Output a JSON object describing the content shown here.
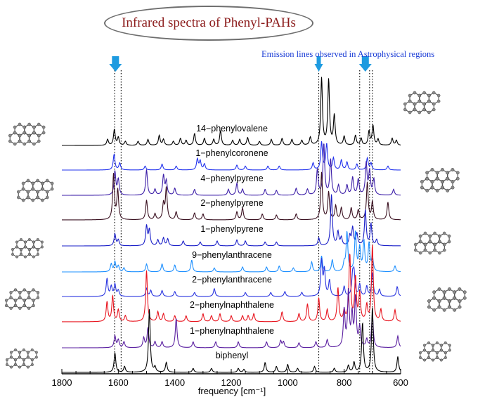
{
  "title": "Infrared spectra of Phenyl-PAHs",
  "annotation": "Emission lines observed in Astrophysical regions",
  "colors": {
    "title_text": "#8b1a1a",
    "annotation_text": "#1a3cd6",
    "arrow": "#1e9be0",
    "molecule_atom": "#8a8a8a"
  },
  "chart_data": {
    "type": "line",
    "xlabel": "frequency [cm⁻¹]",
    "xlim": [
      1800,
      600
    ],
    "x_inverted": true,
    "x_ticks": [
      1800,
      1600,
      1400,
      1200,
      1000,
      800,
      600
    ],
    "y_axis": "none",
    "emission_lines": [
      1613,
      1590,
      890,
      745,
      710,
      700
    ],
    "arrows_at": [
      1610,
      890,
      725
    ],
    "series": [
      {
        "name": "14−phenylovalene",
        "color": "#000000",
        "peaks": [
          [
            1638,
            0.3
          ],
          [
            1614,
            0.8
          ],
          [
            1600,
            0.4
          ],
          [
            1575,
            0.2
          ],
          [
            1530,
            0.2
          ],
          [
            1495,
            0.3
          ],
          [
            1455,
            0.5
          ],
          [
            1440,
            0.3
          ],
          [
            1405,
            0.2
          ],
          [
            1380,
            0.35
          ],
          [
            1360,
            0.25
          ],
          [
            1330,
            0.6
          ],
          [
            1295,
            0.35
          ],
          [
            1262,
            0.3
          ],
          [
            1238,
            0.75
          ],
          [
            1195,
            0.25
          ],
          [
            1170,
            0.3
          ],
          [
            1142,
            0.4
          ],
          [
            1100,
            0.2
          ],
          [
            1058,
            0.3
          ],
          [
            1020,
            0.35
          ],
          [
            985,
            0.3
          ],
          [
            950,
            0.25
          ],
          [
            920,
            0.4
          ],
          [
            880,
            3.4
          ],
          [
            855,
            3.3
          ],
          [
            835,
            1.5
          ],
          [
            800,
            0.45
          ],
          [
            760,
            0.5
          ],
          [
            740,
            0.35
          ],
          [
            712,
            0.7
          ],
          [
            698,
            1.0
          ],
          [
            680,
            0.3
          ],
          [
            630,
            0.35
          ],
          [
            615,
            0.25
          ]
        ]
      },
      {
        "name": "1−phenylcoronene",
        "color": "#2233ee",
        "peaks": [
          [
            1615,
            0.8
          ],
          [
            1595,
            0.35
          ],
          [
            1505,
            0.2
          ],
          [
            1445,
            0.3
          ],
          [
            1395,
            0.2
          ],
          [
            1320,
            0.55
          ],
          [
            1310,
            0.45
          ],
          [
            1295,
            0.3
          ],
          [
            1180,
            0.25
          ],
          [
            1150,
            0.2
          ],
          [
            1070,
            0.2
          ],
          [
            1030,
            0.2
          ],
          [
            910,
            0.35
          ],
          [
            880,
            1.4
          ],
          [
            862,
            1.3
          ],
          [
            838,
            0.6
          ],
          [
            810,
            0.5
          ],
          [
            790,
            0.4
          ],
          [
            755,
            0.3
          ],
          [
            718,
            0.6
          ],
          [
            705,
            0.35
          ],
          [
            645,
            0.2
          ]
        ]
      },
      {
        "name": "4−phenylpyrene",
        "color": "#3d1fa8",
        "peaks": [
          [
            1612,
            1.2
          ],
          [
            1600,
            0.8
          ],
          [
            1500,
            1.3
          ],
          [
            1470,
            0.3
          ],
          [
            1440,
            1.0
          ],
          [
            1430,
            0.7
          ],
          [
            1400,
            0.35
          ],
          [
            1330,
            0.3
          ],
          [
            1210,
            0.3
          ],
          [
            1180,
            0.6
          ],
          [
            1160,
            0.3
          ],
          [
            1080,
            0.3
          ],
          [
            1040,
            0.25
          ],
          [
            970,
            0.35
          ],
          [
            930,
            0.3
          ],
          [
            895,
            1.3
          ],
          [
            872,
            2.6
          ],
          [
            848,
            1.8
          ],
          [
            820,
            0.5
          ],
          [
            790,
            0.5
          ],
          [
            770,
            0.9
          ],
          [
            750,
            0.8
          ],
          [
            722,
            1.6
          ],
          [
            710,
            1.2
          ],
          [
            695,
            0.8
          ],
          [
            625,
            0.3
          ]
        ]
      },
      {
        "name": "2−phenylpyrene",
        "color": "#3a1020",
        "peaks": [
          [
            1617,
            2.3
          ],
          [
            1602,
            1.5
          ],
          [
            1500,
            1.0
          ],
          [
            1470,
            0.3
          ],
          [
            1440,
            0.8
          ],
          [
            1430,
            1.6
          ],
          [
            1395,
            0.4
          ],
          [
            1330,
            0.35
          ],
          [
            1300,
            0.3
          ],
          [
            1180,
            0.4
          ],
          [
            1160,
            0.6
          ],
          [
            1090,
            0.3
          ],
          [
            1040,
            0.25
          ],
          [
            970,
            0.3
          ],
          [
            880,
            2.4
          ],
          [
            855,
            1.4
          ],
          [
            830,
            0.7
          ],
          [
            810,
            0.6
          ],
          [
            775,
            0.6
          ],
          [
            750,
            0.5
          ],
          [
            718,
            1.9
          ],
          [
            700,
            0.9
          ],
          [
            645,
            0.9
          ]
        ]
      },
      {
        "name": "1−phenylpyrene",
        "color": "#1a1fc8",
        "peaks": [
          [
            1612,
            0.6
          ],
          [
            1600,
            0.3
          ],
          [
            1500,
            1.0
          ],
          [
            1490,
            0.8
          ],
          [
            1460,
            0.3
          ],
          [
            1440,
            0.4
          ],
          [
            1425,
            0.35
          ],
          [
            1370,
            0.25
          ],
          [
            1310,
            0.2
          ],
          [
            1250,
            0.25
          ],
          [
            1180,
            0.3
          ],
          [
            1150,
            0.25
          ],
          [
            1080,
            0.2
          ],
          [
            1040,
            0.2
          ],
          [
            890,
            0.4
          ],
          [
            845,
            2.6
          ],
          [
            822,
            0.7
          ],
          [
            810,
            0.4
          ],
          [
            780,
            0.5
          ],
          [
            770,
            0.9
          ],
          [
            755,
            0.6
          ],
          [
            725,
            1.8
          ],
          [
            705,
            1.1
          ],
          [
            685,
            0.3
          ]
        ]
      },
      {
        "name": "9−phenylanthracene",
        "color": "#1e90ff",
        "peaks": [
          [
            1625,
            0.4
          ],
          [
            1612,
            0.5
          ],
          [
            1600,
            0.3
          ],
          [
            1580,
            0.2
          ],
          [
            1500,
            0.4
          ],
          [
            1445,
            0.4
          ],
          [
            1400,
            0.35
          ],
          [
            1340,
            0.6
          ],
          [
            1260,
            0.2
          ],
          [
            1160,
            0.25
          ],
          [
            1075,
            0.25
          ],
          [
            1030,
            0.3
          ],
          [
            980,
            0.2
          ],
          [
            915,
            0.5
          ],
          [
            880,
            0.8
          ],
          [
            842,
            0.6
          ],
          [
            800,
            0.4
          ],
          [
            790,
            2.0
          ],
          [
            760,
            2.0
          ],
          [
            745,
            1.2
          ],
          [
            730,
            1.5
          ],
          [
            712,
            1.4
          ],
          [
            700,
            0.7
          ],
          [
            620,
            0.3
          ]
        ]
      },
      {
        "name": "2−phenylanthracene",
        "color": "#2a35e0",
        "peaks": [
          [
            1640,
            0.9
          ],
          [
            1625,
            0.5
          ],
          [
            1612,
            0.6
          ],
          [
            1600,
            0.3
          ],
          [
            1500,
            0.4
          ],
          [
            1485,
            0.3
          ],
          [
            1445,
            0.3
          ],
          [
            1400,
            0.25
          ],
          [
            1330,
            0.2
          ],
          [
            1260,
            0.4
          ],
          [
            1150,
            0.2
          ],
          [
            1060,
            0.2
          ],
          [
            1010,
            0.25
          ],
          [
            950,
            0.2
          ],
          [
            880,
            1.8
          ],
          [
            870,
            1.3
          ],
          [
            852,
            0.8
          ],
          [
            800,
            0.5
          ],
          [
            770,
            1.0
          ],
          [
            765,
            1.1
          ],
          [
            745,
            0.6
          ],
          [
            720,
            0.5
          ],
          [
            700,
            1.2
          ],
          [
            675,
            0.35
          ],
          [
            612,
            0.5
          ]
        ]
      },
      {
        "name": "2−phenylnaphthalene",
        "color": "#e8141e",
        "peaks": [
          [
            1640,
            1.0
          ],
          [
            1620,
            1.3
          ],
          [
            1600,
            0.6
          ],
          [
            1575,
            0.3
          ],
          [
            1500,
            2.6
          ],
          [
            1460,
            0.5
          ],
          [
            1440,
            0.4
          ],
          [
            1400,
            0.3
          ],
          [
            1360,
            0.3
          ],
          [
            1300,
            0.4
          ],
          [
            1270,
            0.3
          ],
          [
            1240,
            0.4
          ],
          [
            1200,
            0.3
          ],
          [
            1160,
            0.3
          ],
          [
            1140,
            0.3
          ],
          [
            1120,
            0.4
          ],
          [
            1020,
            0.5
          ],
          [
            960,
            0.4
          ],
          [
            930,
            0.9
          ],
          [
            890,
            1.2
          ],
          [
            860,
            0.6
          ],
          [
            822,
            1.7
          ],
          [
            800,
            0.5
          ],
          [
            780,
            3.4
          ],
          [
            760,
            2.2
          ],
          [
            745,
            1.4
          ],
          [
            720,
            0.8
          ],
          [
            700,
            3.9
          ],
          [
            670,
            0.6
          ],
          [
            620,
            0.6
          ]
        ]
      },
      {
        "name": "1−phenylnaphthalene",
        "color": "#5a1fa0",
        "peaks": [
          [
            1612,
            0.6
          ],
          [
            1600,
            0.4
          ],
          [
            1580,
            0.3
          ],
          [
            1510,
            0.5
          ],
          [
            1495,
            1.0
          ],
          [
            1470,
            0.3
          ],
          [
            1445,
            0.3
          ],
          [
            1395,
            1.5
          ],
          [
            1335,
            0.3
          ],
          [
            1255,
            0.3
          ],
          [
            1175,
            0.3
          ],
          [
            1075,
            0.3
          ],
          [
            1025,
            0.35
          ],
          [
            1015,
            0.3
          ],
          [
            960,
            0.25
          ],
          [
            900,
            0.3
          ],
          [
            860,
            0.4
          ],
          [
            800,
            1.9
          ],
          [
            785,
            2.8
          ],
          [
            772,
            1.6
          ],
          [
            760,
            2.5
          ],
          [
            745,
            1.0
          ],
          [
            720,
            0.4
          ],
          [
            700,
            1.7
          ],
          [
            610,
            0.6
          ]
        ]
      },
      {
        "name": "biphenyl",
        "color": "#000000",
        "peaks": [
          [
            1612,
            1.0
          ],
          [
            1578,
            0.3
          ],
          [
            1490,
            3.2
          ],
          [
            1470,
            0.25
          ],
          [
            1430,
            0.5
          ],
          [
            1335,
            0.2
          ],
          [
            1270,
            0.2
          ],
          [
            1175,
            0.2
          ],
          [
            1155,
            0.15
          ],
          [
            1080,
            0.5
          ],
          [
            1040,
            0.3
          ],
          [
            1000,
            0.4
          ],
          [
            965,
            0.2
          ],
          [
            905,
            0.3
          ],
          [
            835,
            0.2
          ],
          [
            785,
            0.35
          ],
          [
            765,
            0.5
          ],
          [
            735,
            2.5
          ],
          [
            700,
            3.3
          ],
          [
            610,
            0.8
          ]
        ]
      }
    ]
  }
}
